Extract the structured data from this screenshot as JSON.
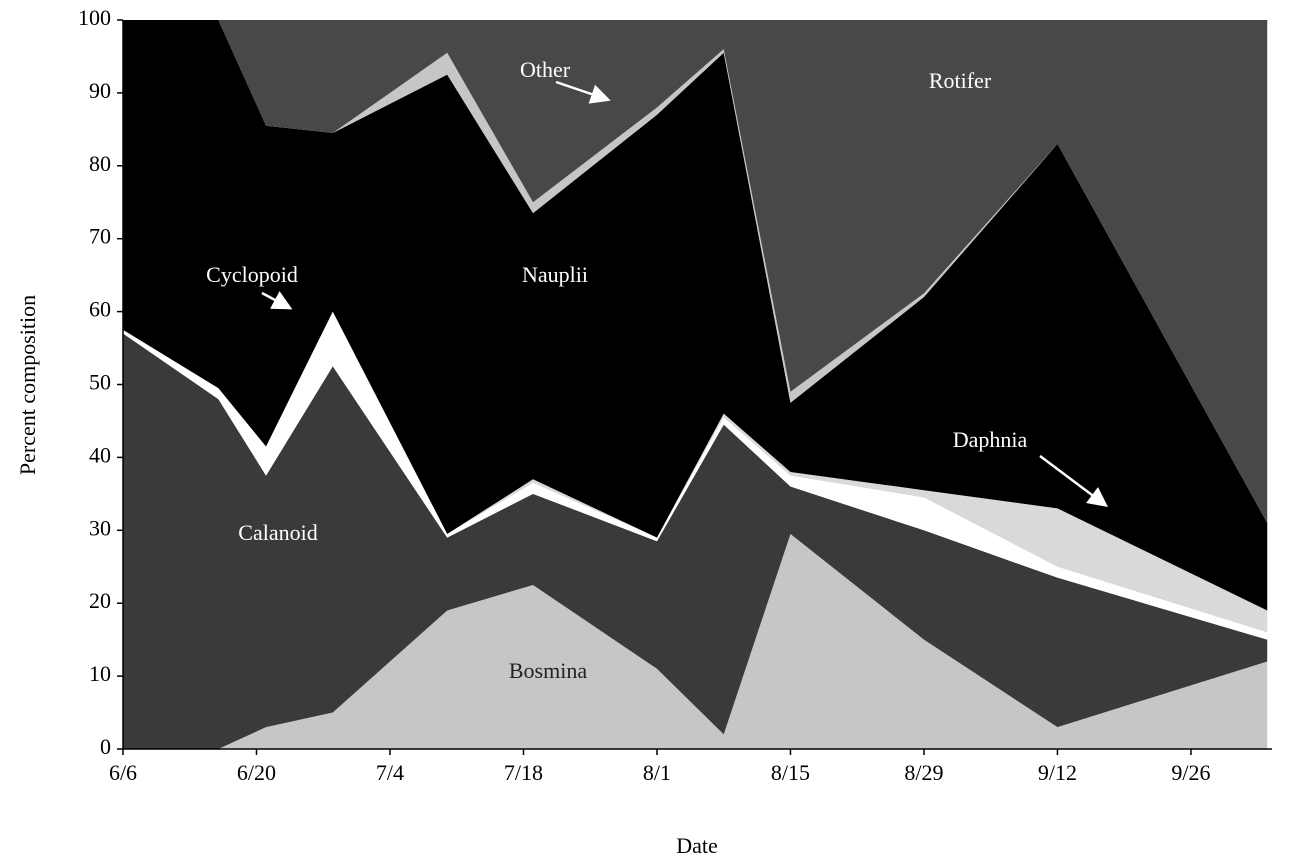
{
  "chart_data": {
    "type": "stacked-area",
    "xlabel": "Date",
    "ylabel": "Percent composition",
    "x": [
      0,
      10,
      15,
      22,
      34,
      43,
      56,
      63,
      70,
      84,
      98,
      120
    ],
    "xlim": [
      0,
      120.5
    ],
    "xticks": [
      {
        "value": 0,
        "label": "6/6"
      },
      {
        "value": 14,
        "label": "6/20"
      },
      {
        "value": 28,
        "label": "7/4"
      },
      {
        "value": 42,
        "label": "7/18"
      },
      {
        "value": 56,
        "label": "8/1"
      },
      {
        "value": 70,
        "label": "8/15"
      },
      {
        "value": 84,
        "label": "8/29"
      },
      {
        "value": 98,
        "label": "9/12"
      },
      {
        "value": 112,
        "label": "9/26"
      }
    ],
    "ylim": [
      0,
      100
    ],
    "yticks": [
      0,
      10,
      20,
      30,
      40,
      50,
      60,
      70,
      80,
      90,
      100
    ],
    "series": [
      {
        "name": "Bosmina",
        "color": "#c6c6c6",
        "values": [
          0,
          0,
          3,
          5,
          19,
          22.5,
          11,
          2,
          29.5,
          15,
          3,
          12
        ]
      },
      {
        "name": "Calanoid",
        "color": "#3a3a3a",
        "values": [
          57,
          48,
          34.5,
          47.5,
          10,
          12.5,
          17.5,
          42.5,
          6.5,
          15,
          20.5,
          3
        ]
      },
      {
        "name": "Cyclopoid",
        "color": "#ffffff",
        "values": [
          0.5,
          1.5,
          4,
          7.5,
          0.5,
          1.5,
          0.5,
          1,
          1.5,
          4.5,
          1.5,
          1
        ]
      },
      {
        "name": "Daphnia",
        "color": "#d9d9d9",
        "values": [
          0,
          0,
          0,
          0,
          0,
          0.5,
          0,
          0.5,
          0.5,
          1,
          8,
          3
        ]
      },
      {
        "name": "Nauplii",
        "color": "#000000",
        "values": [
          42.5,
          50.5,
          44,
          24.5,
          63,
          36.5,
          58,
          49.5,
          9.5,
          26.5,
          50,
          12
        ]
      },
      {
        "name": "Other",
        "color": "#c6c6c6",
        "values": [
          0,
          0,
          0,
          0,
          3,
          1.5,
          1,
          0.5,
          1.5,
          0.5,
          0,
          0
        ]
      },
      {
        "name": "Rotifer",
        "color": "#484848",
        "values": [
          0,
          0,
          14.5,
          15.5,
          4.5,
          25,
          12,
          4,
          51,
          37.5,
          17,
          69
        ]
      }
    ]
  }
}
